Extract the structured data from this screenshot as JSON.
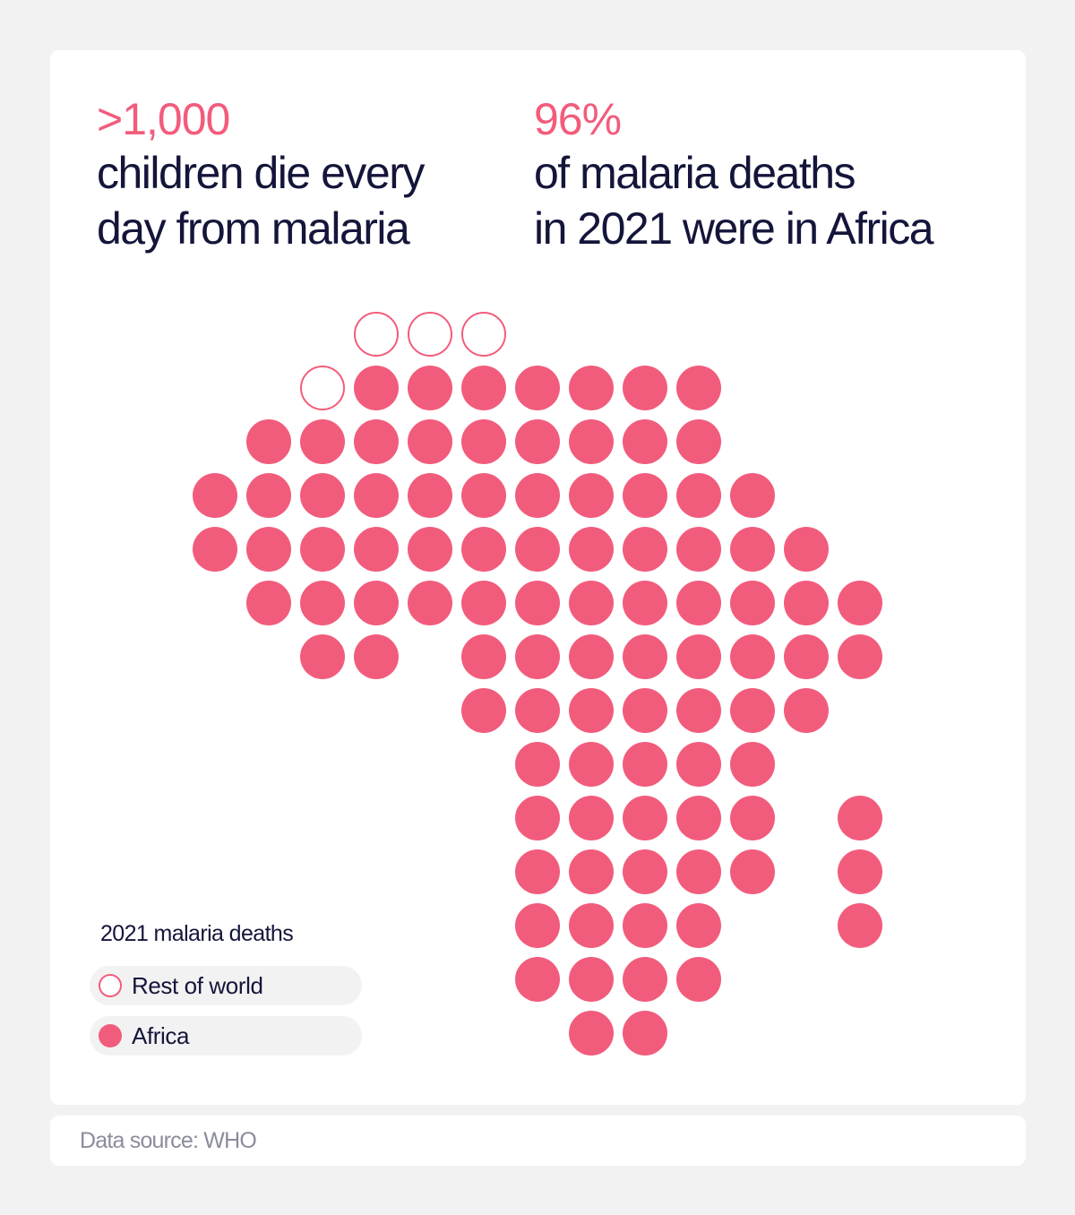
{
  "stats": [
    {
      "value": ">1,000",
      "lines": [
        "children die every",
        "day from malaria"
      ]
    },
    {
      "value": "96%",
      "lines": [
        "of malaria deaths",
        "in 2021 were in Africa"
      ]
    }
  ],
  "legend": {
    "title": "2021 malaria deaths",
    "items": [
      {
        "label": "Rest of world",
        "style": "outline"
      },
      {
        "label": "Africa",
        "style": "filled"
      }
    ]
  },
  "source": "Data source: WHO",
  "colors": {
    "accent": "#f25c7c",
    "text": "#14153a",
    "muted": "#8b8c9c",
    "background": "#f2f2f2"
  },
  "chart_data": {
    "type": "dot-map",
    "title": "2021 malaria deaths",
    "series": [
      {
        "name": "Rest of world",
        "style": "outline",
        "count": 4
      },
      {
        "name": "Africa",
        "style": "filled",
        "count": 96
      }
    ],
    "total_dots": 100
  }
}
